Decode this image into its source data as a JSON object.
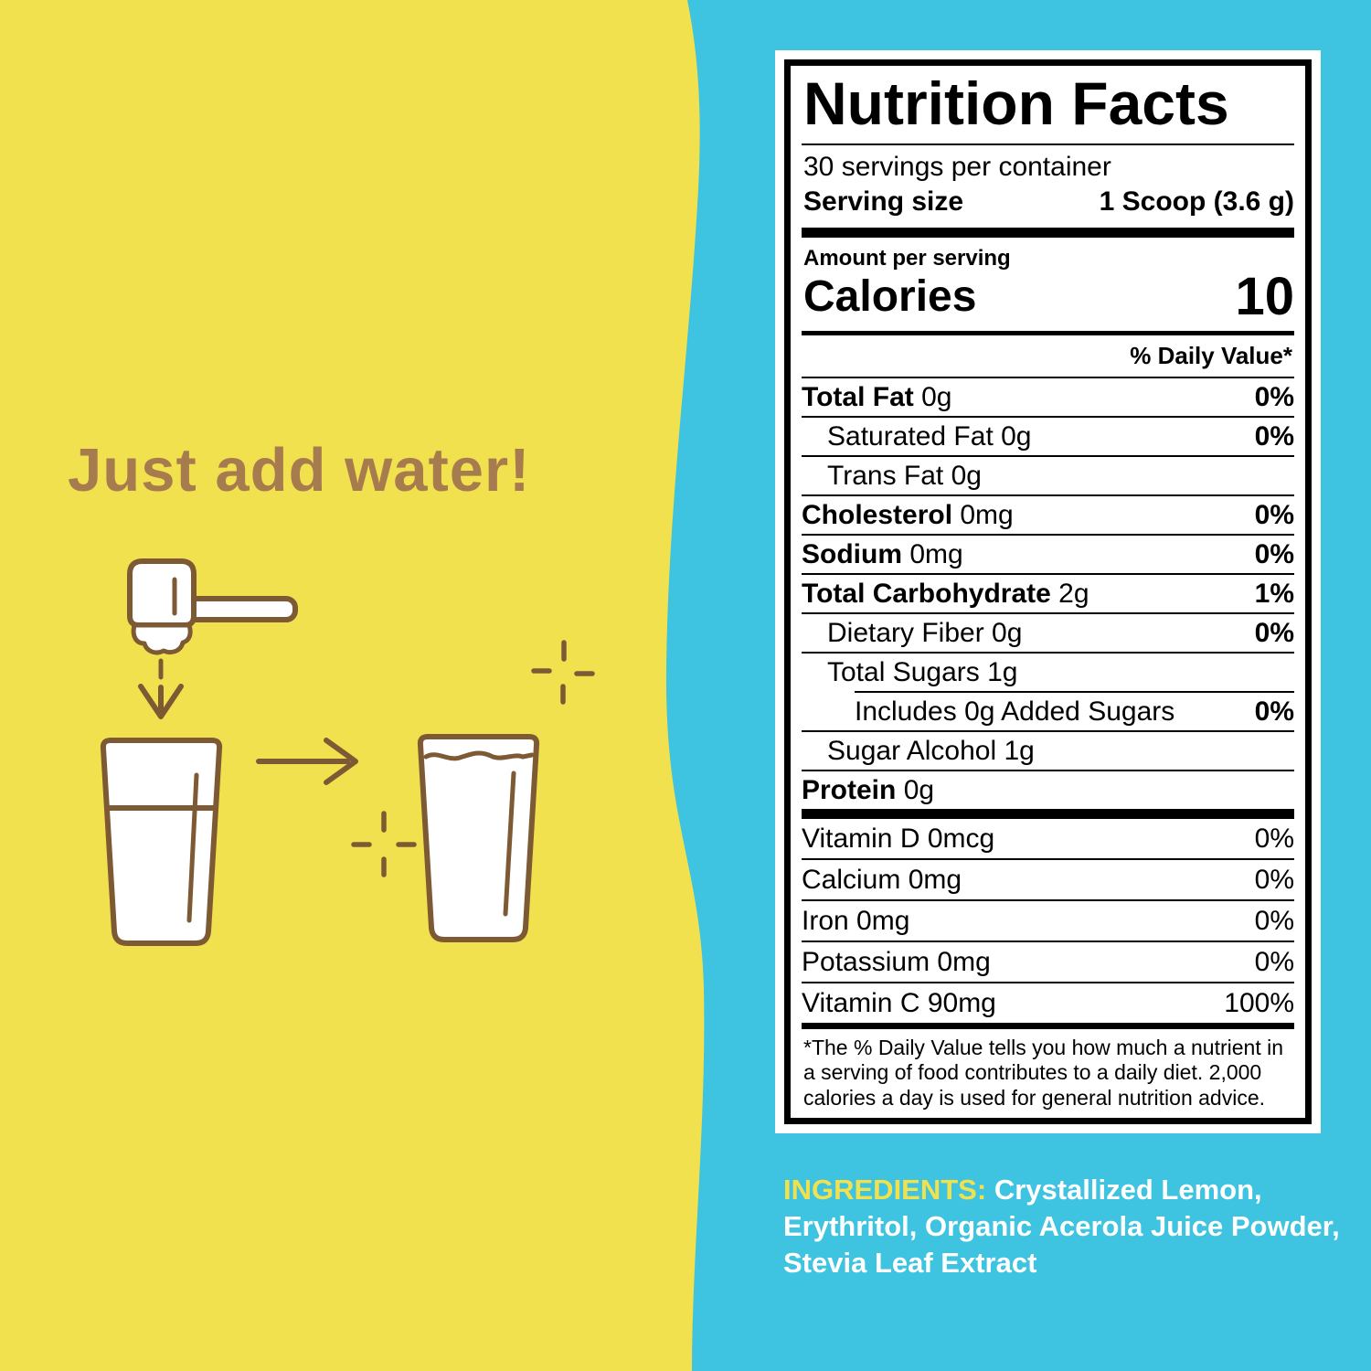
{
  "colors": {
    "background_blue": "#3EC3E0",
    "background_yellow": "#F1E14F",
    "headline_brown": "#A67C4E",
    "line_art_brown": "#7D5A34",
    "label_black": "#000000",
    "label_white": "#FFFFFF",
    "ingredients_label_yellow": "#F1E14F",
    "ingredients_text_white": "#FFFFFF"
  },
  "left_panel": {
    "headline": "Just add water!",
    "illustration_icons": [
      "scoop-icon",
      "down-arrow-icon",
      "glass-of-water-icon",
      "right-arrow-icon",
      "full-glass-icon",
      "sparkle-icon"
    ]
  },
  "nutrition_facts": {
    "title": "Nutrition Facts",
    "servings_per_container": "30 servings per container",
    "serving_size_label": "Serving size",
    "serving_size_value": "1 Scoop (3.6 g)",
    "amount_per_serving": "Amount per serving",
    "calories_label": "Calories",
    "calories_value": "10",
    "daily_value_header": "% Daily Value*",
    "rows": [
      {
        "name": "Total Fat",
        "amount": "0g",
        "dv": "0%",
        "bold": true,
        "indent": 0
      },
      {
        "name": "Saturated Fat",
        "amount": "0g",
        "dv": "0%",
        "bold": false,
        "indent": 1
      },
      {
        "name": "Trans Fat",
        "amount": "0g",
        "dv": "",
        "bold": false,
        "indent": 1
      },
      {
        "name": "Cholesterol",
        "amount": "0mg",
        "dv": "0%",
        "bold": true,
        "indent": 0
      },
      {
        "name": "Sodium",
        "amount": "0mg",
        "dv": "0%",
        "bold": true,
        "indent": 0
      },
      {
        "name": "Total Carbohydrate",
        "amount": "2g",
        "dv": "1%",
        "bold": true,
        "indent": 0
      },
      {
        "name": "Dietary Fiber",
        "amount": "0g",
        "dv": "0%",
        "bold": false,
        "indent": 1
      },
      {
        "name": "Total Sugars",
        "amount": "1g",
        "dv": "",
        "bold": false,
        "indent": 1
      },
      {
        "name": "Includes 0g Added Sugars",
        "amount": "",
        "dv": "0%",
        "bold": false,
        "indent": 2,
        "partial_rule": true
      },
      {
        "name": "Sugar Alcohol",
        "amount": "1g",
        "dv": "",
        "bold": false,
        "indent": 1
      },
      {
        "name": "Protein",
        "amount": "0g",
        "dv": "",
        "bold": true,
        "indent": 0
      }
    ],
    "vitamins": [
      {
        "name": "Vitamin D",
        "amount": "0mcg",
        "dv": "0%"
      },
      {
        "name": "Calcium",
        "amount": "0mg",
        "dv": "0%"
      },
      {
        "name": "Iron",
        "amount": "0mg",
        "dv": "0%"
      },
      {
        "name": "Potassium",
        "amount": "0mg",
        "dv": "0%"
      },
      {
        "name": "Vitamin C",
        "amount": "90mg",
        "dv": "100%"
      }
    ],
    "footnote": "*The % Daily Value tells you how much a nutrient in a serving of food contributes to a daily diet. 2,000 calories a day is used for general nutrition advice."
  },
  "ingredients": {
    "label": "INGREDIENTS:",
    "line1": "Crystallized Lemon,",
    "line2": "Erythritol, Organic Acerola Juice Powder,",
    "line3": "Stevia Leaf Extract"
  }
}
